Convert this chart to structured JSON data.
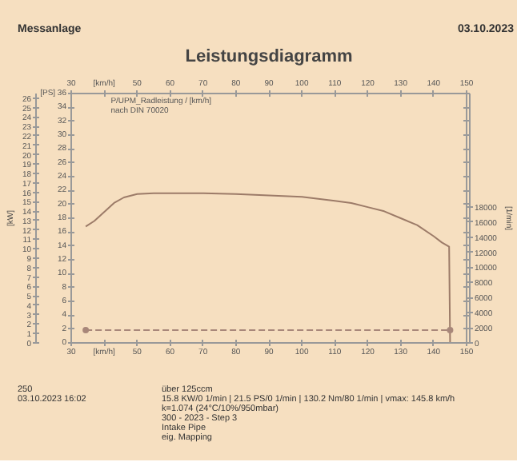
{
  "chart_data": {
    "type": "line",
    "title": "Leistungsdiagramm",
    "xlim": [
      30,
      150
    ],
    "xticks": [
      30,
      {
        "value": 40,
        "label": "[km/h]"
      },
      50,
      60,
      70,
      80,
      90,
      100,
      110,
      120,
      130,
      140,
      150
    ],
    "x2lim": [
      30,
      150
    ],
    "x2ticks": [
      30,
      {
        "value": 40,
        "label": "[km/h]"
      },
      50,
      60,
      70,
      80,
      90,
      100,
      110,
      120,
      130,
      140,
      150
    ],
    "ylim": [
      0,
      36
    ],
    "yticks": [
      0,
      2,
      4,
      6,
      8,
      10,
      12,
      14,
      16,
      18,
      20,
      22,
      24,
      26,
      28,
      30,
      32,
      34,
      {
        "value": 36,
        "label": "[PS] 36"
      }
    ],
    "y2lim": [
      0,
      26.5
    ],
    "y2ticks": [
      0,
      1,
      2,
      3,
      4,
      5,
      6,
      7,
      8,
      9,
      10,
      11,
      12,
      13,
      14,
      15,
      16,
      17,
      18,
      19,
      20,
      21,
      22,
      23,
      24,
      25,
      26
    ],
    "y2label": "[kW]",
    "y3lim": [
      0,
      33000
    ],
    "y3ticks": [
      0,
      2000,
      4000,
      6000,
      8000,
      10000,
      12000,
      14000,
      16000,
      18000
    ],
    "y3label": "[1/min]",
    "series": [
      {
        "color": "#9c7b68",
        "values": [
          16.8,
          17.6,
          18.9,
          20.2,
          21.0,
          21.5,
          21.6,
          21.6,
          21.6,
          21.5,
          21.3,
          21.1,
          20.8,
          20.5,
          20.2,
          19.6,
          19.0,
          18.0,
          17.0,
          15.4,
          14.5,
          13.9,
          0
        ],
        "x": [
          34.4,
          37,
          40,
          43,
          46,
          50,
          55,
          60,
          70,
          80,
          90,
          100,
          105,
          110,
          115,
          120,
          125,
          130,
          135,
          140,
          142.5,
          144.7,
          145
        ]
      },
      {
        "axis": "y3",
        "color": "#a8877a",
        "marker": "circle",
        "line_style": "dashed",
        "values": [
          1700,
          1700
        ],
        "x": [
          34.4,
          145
        ]
      }
    ],
    "annotations": [
      "Messanlage",
      "03.10.2023",
      "P/UPM_Radleistung / [km/h]",
      "nach DIN 70020",
      "250",
      "03.10.2023 16:02",
      "über 125ccm",
      "15.8 KW/0 1/min | 21.5 PS/0 1/min | 130.2 Nm/80 1/min | vmax: 145.8 km/h",
      "k=1.074 (24°C/10%/950mbar)",
      "300 - 2023 - Step 3",
      "Intake Pipe",
      "eig. Mapping"
    ]
  }
}
